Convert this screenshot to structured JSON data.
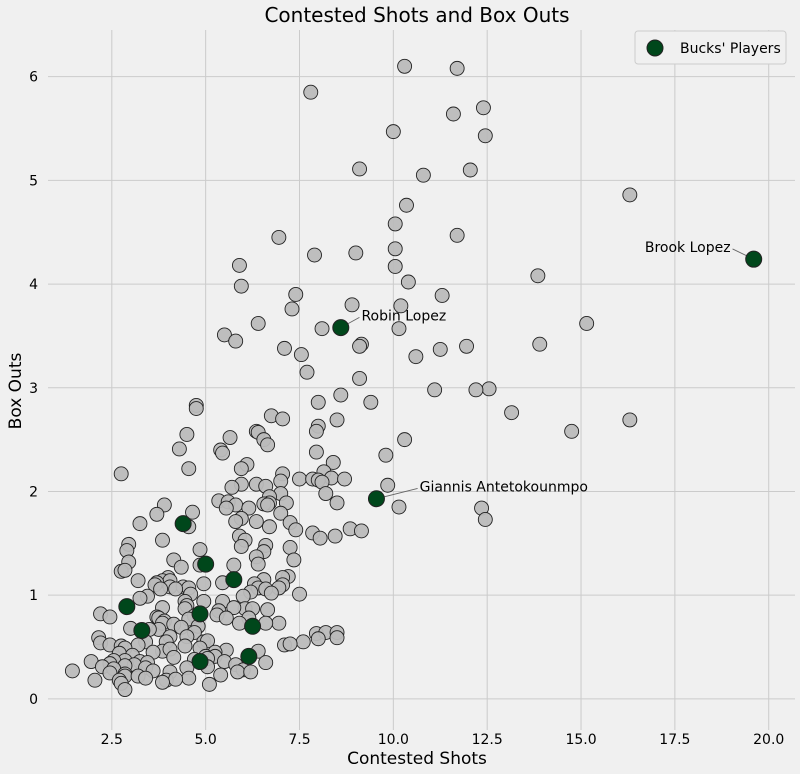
{
  "chart_data": {
    "type": "scatter",
    "title": "Contested Shots and Box Outs",
    "xlabel": "Contested Shots",
    "ylabel": "Box Outs",
    "xlim": [
      0.8,
      20.7
    ],
    "ylim": [
      -0.3,
      6.45
    ],
    "xticks": [
      2.5,
      5.0,
      7.5,
      10.0,
      12.5,
      15.0,
      17.5,
      20.0
    ],
    "xtick_labels": [
      "2.5",
      "5.0",
      "7.5",
      "10.0",
      "12.5",
      "15.0",
      "17.5",
      "20.0"
    ],
    "yticks": [
      0,
      1,
      2,
      3,
      4,
      5,
      6
    ],
    "ytick_labels": [
      "0",
      "1",
      "2",
      "3",
      "4",
      "5",
      "6"
    ],
    "grid": true,
    "legend_position": "top-right",
    "colors": {
      "background": "#f0f0f0",
      "other": "#bbbbbb",
      "bucks": "#00471b",
      "edge": "#222222"
    },
    "series": [
      {
        "name": "",
        "color": "#bbbbbb",
        "points": [
          [
            10.3,
            6.1
          ],
          [
            11.7,
            6.08
          ],
          [
            7.8,
            5.85
          ],
          [
            12.4,
            5.7
          ],
          [
            11.6,
            5.64
          ],
          [
            10.0,
            5.47
          ],
          [
            12.45,
            5.43
          ],
          [
            9.1,
            5.11
          ],
          [
            12.05,
            5.1
          ],
          [
            10.8,
            5.05
          ],
          [
            16.3,
            4.86
          ],
          [
            10.35,
            4.76
          ],
          [
            10.05,
            4.58
          ],
          [
            11.7,
            4.47
          ],
          [
            6.95,
            4.45
          ],
          [
            10.05,
            4.34
          ],
          [
            9.0,
            4.3
          ],
          [
            7.9,
            4.28
          ],
          [
            5.9,
            4.18
          ],
          [
            10.05,
            4.17
          ],
          [
            13.85,
            4.08
          ],
          [
            10.4,
            4.02
          ],
          [
            5.95,
            3.98
          ],
          [
            7.4,
            3.9
          ],
          [
            11.3,
            3.89
          ],
          [
            8.9,
            3.8
          ],
          [
            10.2,
            3.79
          ],
          [
            7.3,
            3.76
          ],
          [
            15.15,
            3.62
          ],
          [
            6.4,
            3.62
          ],
          [
            8.1,
            3.57
          ],
          [
            10.15,
            3.57
          ],
          [
            5.5,
            3.51
          ],
          [
            5.8,
            3.45
          ],
          [
            13.9,
            3.42
          ],
          [
            9.15,
            3.42
          ],
          [
            9.1,
            3.4
          ],
          [
            11.95,
            3.4
          ],
          [
            7.1,
            3.38
          ],
          [
            11.25,
            3.37
          ],
          [
            7.55,
            3.32
          ],
          [
            10.6,
            3.3
          ],
          [
            7.7,
            3.15
          ],
          [
            9.1,
            3.09
          ],
          [
            12.55,
            2.99
          ],
          [
            11.1,
            2.98
          ],
          [
            12.2,
            2.98
          ],
          [
            8.6,
            2.93
          ],
          [
            4.75,
            2.83
          ],
          [
            4.75,
            2.8
          ],
          [
            8.0,
            2.86
          ],
          [
            9.4,
            2.86
          ],
          [
            13.15,
            2.76
          ],
          [
            6.75,
            2.73
          ],
          [
            7.05,
            2.7
          ],
          [
            8.5,
            2.69
          ],
          [
            16.3,
            2.69
          ],
          [
            8.0,
            2.63
          ],
          [
            7.95,
            2.58
          ],
          [
            14.75,
            2.58
          ],
          [
            6.35,
            2.58
          ],
          [
            6.4,
            2.57
          ],
          [
            4.5,
            2.55
          ],
          [
            5.65,
            2.52
          ],
          [
            10.3,
            2.5
          ],
          [
            6.55,
            2.5
          ],
          [
            6.65,
            2.45
          ],
          [
            4.3,
            2.41
          ],
          [
            5.4,
            2.4
          ],
          [
            5.45,
            2.37
          ],
          [
            7.95,
            2.38
          ],
          [
            9.8,
            2.35
          ],
          [
            8.4,
            2.28
          ],
          [
            6.1,
            2.26
          ],
          [
            4.55,
            2.22
          ],
          [
            5.95,
            2.22
          ],
          [
            8.15,
            2.19
          ],
          [
            2.75,
            2.17
          ],
          [
            7.05,
            2.17
          ],
          [
            8.35,
            2.13
          ],
          [
            7.5,
            2.12
          ],
          [
            7.85,
            2.12
          ],
          [
            8.7,
            2.12
          ],
          [
            8.0,
            2.11
          ],
          [
            7.0,
            2.1
          ],
          [
            8.1,
            2.09
          ],
          [
            6.35,
            2.07
          ],
          [
            5.95,
            2.07
          ],
          [
            9.85,
            2.06
          ],
          [
            5.7,
            2.04
          ],
          [
            6.6,
            2.05
          ],
          [
            8.2,
            1.98
          ],
          [
            7.0,
            1.98
          ],
          [
            6.7,
            1.95
          ],
          [
            5.35,
            1.91
          ],
          [
            5.6,
            1.9
          ],
          [
            7.15,
            1.89
          ],
          [
            6.7,
            1.89
          ],
          [
            6.55,
            1.88
          ],
          [
            8.5,
            1.89
          ],
          [
            3.9,
            1.87
          ],
          [
            5.8,
            1.87
          ],
          [
            6.65,
            1.87
          ],
          [
            10.15,
            1.85
          ],
          [
            12.35,
            1.84
          ],
          [
            5.55,
            1.84
          ],
          [
            6.15,
            1.84
          ],
          [
            4.65,
            1.8
          ],
          [
            7.0,
            1.79
          ],
          [
            3.7,
            1.78
          ],
          [
            5.95,
            1.74
          ],
          [
            5.8,
            1.71
          ],
          [
            12.45,
            1.73
          ],
          [
            6.35,
            1.71
          ],
          [
            7.25,
            1.7
          ],
          [
            3.25,
            1.69
          ],
          [
            4.55,
            1.66
          ],
          [
            6.7,
            1.66
          ],
          [
            8.85,
            1.64
          ],
          [
            9.15,
            1.62
          ],
          [
            7.4,
            1.63
          ],
          [
            7.85,
            1.6
          ],
          [
            8.45,
            1.57
          ],
          [
            5.9,
            1.57
          ],
          [
            8.05,
            1.55
          ],
          [
            3.85,
            1.53
          ],
          [
            6.05,
            1.53
          ],
          [
            2.95,
            1.49
          ],
          [
            6.6,
            1.48
          ],
          [
            5.95,
            1.47
          ],
          [
            7.25,
            1.46
          ],
          [
            4.85,
            1.44
          ],
          [
            2.9,
            1.43
          ],
          [
            6.55,
            1.42
          ],
          [
            6.35,
            1.37
          ],
          [
            7.35,
            1.34
          ],
          [
            4.15,
            1.34
          ],
          [
            2.95,
            1.32
          ],
          [
            4.85,
            1.29
          ],
          [
            4.35,
            1.27
          ],
          [
            5.75,
            1.29
          ],
          [
            6.4,
            1.3
          ],
          [
            2.75,
            1.23
          ],
          [
            2.85,
            1.24
          ],
          [
            7.2,
            1.18
          ],
          [
            7.05,
            1.17
          ],
          [
            4.0,
            1.17
          ],
          [
            3.85,
            1.14
          ],
          [
            6.55,
            1.15
          ],
          [
            4.05,
            1.14
          ],
          [
            3.2,
            1.14
          ],
          [
            3.7,
            1.12
          ],
          [
            5.45,
            1.12
          ],
          [
            6.3,
            1.11
          ],
          [
            4.95,
            1.11
          ],
          [
            3.65,
            1.1
          ],
          [
            7.05,
            1.1
          ],
          [
            4.05,
            1.08
          ],
          [
            4.4,
            1.08
          ],
          [
            6.4,
            1.07
          ],
          [
            4.55,
            1.07
          ],
          [
            6.95,
            1.07
          ],
          [
            6.6,
            1.06
          ],
          [
            4.2,
            1.06
          ],
          [
            3.8,
            1.06
          ],
          [
            6.2,
            1.03
          ],
          [
            6.75,
            1.02
          ],
          [
            4.6,
            1.01
          ],
          [
            7.5,
            1.01
          ],
          [
            3.45,
            0.99
          ],
          [
            3.25,
            0.97
          ],
          [
            6.0,
            0.99
          ],
          [
            5.45,
            0.94
          ],
          [
            4.95,
            0.94
          ],
          [
            4.45,
            0.94
          ],
          [
            4.5,
            0.9
          ],
          [
            3.85,
            0.88
          ],
          [
            4.45,
            0.87
          ],
          [
            6.05,
            0.87
          ],
          [
            5.75,
            0.88
          ],
          [
            6.25,
            0.87
          ],
          [
            6.65,
            0.86
          ],
          [
            5.35,
            0.85
          ],
          [
            5.3,
            0.81
          ],
          [
            2.2,
            0.82
          ],
          [
            3.7,
            0.79
          ],
          [
            2.45,
            0.79
          ],
          [
            3.75,
            0.78
          ],
          [
            4.7,
            0.8
          ],
          [
            5.55,
            0.78
          ],
          [
            6.15,
            0.78
          ],
          [
            4.55,
            0.77
          ],
          [
            3.9,
            0.75
          ],
          [
            3.85,
            0.73
          ],
          [
            4.15,
            0.72
          ],
          [
            5.9,
            0.73
          ],
          [
            6.95,
            0.73
          ],
          [
            6.6,
            0.73
          ],
          [
            4.8,
            0.7
          ],
          [
            4.35,
            0.69
          ],
          [
            3.0,
            0.68
          ],
          [
            3.75,
            0.67
          ],
          [
            3.5,
            0.67
          ],
          [
            7.95,
            0.63
          ],
          [
            8.2,
            0.64
          ],
          [
            8.5,
            0.64
          ],
          [
            4.7,
            0.64
          ],
          [
            4.5,
            0.6
          ],
          [
            4.05,
            0.6
          ],
          [
            2.15,
            0.59
          ],
          [
            8.0,
            0.58
          ],
          [
            8.5,
            0.59
          ],
          [
            3.4,
            0.55
          ],
          [
            3.95,
            0.55
          ],
          [
            4.95,
            0.55
          ],
          [
            5.05,
            0.56
          ],
          [
            7.6,
            0.55
          ],
          [
            2.2,
            0.54
          ],
          [
            2.45,
            0.52
          ],
          [
            3.2,
            0.52
          ],
          [
            2.75,
            0.51
          ],
          [
            4.45,
            0.51
          ],
          [
            7.1,
            0.52
          ],
          [
            7.25,
            0.53
          ],
          [
            2.85,
            0.49
          ],
          [
            4.85,
            0.49
          ],
          [
            5.55,
            0.47
          ],
          [
            6.4,
            0.46
          ],
          [
            3.85,
            0.46
          ],
          [
            4.05,
            0.48
          ],
          [
            2.7,
            0.44
          ],
          [
            3.6,
            0.45
          ],
          [
            5.25,
            0.45
          ],
          [
            3.05,
            0.42
          ],
          [
            5.0,
            0.41
          ],
          [
            5.25,
            0.41
          ],
          [
            5.05,
            0.39
          ],
          [
            4.15,
            0.4
          ],
          [
            4.7,
            0.38
          ],
          [
            2.85,
            0.37
          ],
          [
            2.55,
            0.37
          ],
          [
            1.95,
            0.36
          ],
          [
            2.45,
            0.34
          ],
          [
            3.25,
            0.36
          ],
          [
            5.5,
            0.36
          ],
          [
            3.45,
            0.35
          ],
          [
            6.6,
            0.35
          ],
          [
            3.1,
            0.33
          ],
          [
            5.8,
            0.33
          ],
          [
            2.85,
            0.32
          ],
          [
            2.25,
            0.31
          ],
          [
            5.05,
            0.31
          ],
          [
            3.4,
            0.3
          ],
          [
            4.5,
            0.3
          ],
          [
            2.55,
            0.29
          ],
          [
            6.0,
            0.28
          ],
          [
            1.45,
            0.27
          ],
          [
            3.6,
            0.27
          ],
          [
            5.85,
            0.26
          ],
          [
            6.2,
            0.26
          ],
          [
            4.05,
            0.26
          ],
          [
            2.85,
            0.24
          ],
          [
            2.45,
            0.25
          ],
          [
            5.4,
            0.23
          ],
          [
            2.85,
            0.22
          ],
          [
            3.2,
            0.22
          ],
          [
            3.4,
            0.2
          ],
          [
            4.55,
            0.2
          ],
          [
            2.05,
            0.18
          ],
          [
            2.7,
            0.18
          ],
          [
            3.95,
            0.18
          ],
          [
            4.2,
            0.19
          ],
          [
            2.75,
            0.15
          ],
          [
            3.85,
            0.16
          ],
          [
            5.1,
            0.14
          ],
          [
            2.85,
            0.09
          ]
        ]
      },
      {
        "name": "Bucks' Players",
        "color": "#00471b",
        "points": [
          [
            19.6,
            4.24
          ],
          [
            8.6,
            3.58
          ],
          [
            9.55,
            1.93
          ],
          [
            4.4,
            1.69
          ],
          [
            5.0,
            1.3
          ],
          [
            5.75,
            1.15
          ],
          [
            2.9,
            0.89
          ],
          [
            4.85,
            0.82
          ],
          [
            3.3,
            0.66
          ],
          [
            6.25,
            0.7
          ],
          [
            6.15,
            0.41
          ],
          [
            4.85,
            0.36
          ]
        ]
      }
    ],
    "annotations": [
      {
        "text": "Brook Lopez",
        "point": [
          19.6,
          4.24
        ],
        "text_at": [
          16.7,
          4.31
        ],
        "anchor": "start"
      },
      {
        "text": "Robin Lopez",
        "point": [
          8.6,
          3.58
        ],
        "text_at": [
          9.15,
          3.65
        ],
        "anchor": "start"
      },
      {
        "text": "Giannis Antetokounmpo",
        "point": [
          9.55,
          1.93
        ],
        "text_at": [
          10.7,
          2.0
        ],
        "anchor": "start"
      }
    ],
    "legend": {
      "label": "Bucks' Players"
    }
  }
}
